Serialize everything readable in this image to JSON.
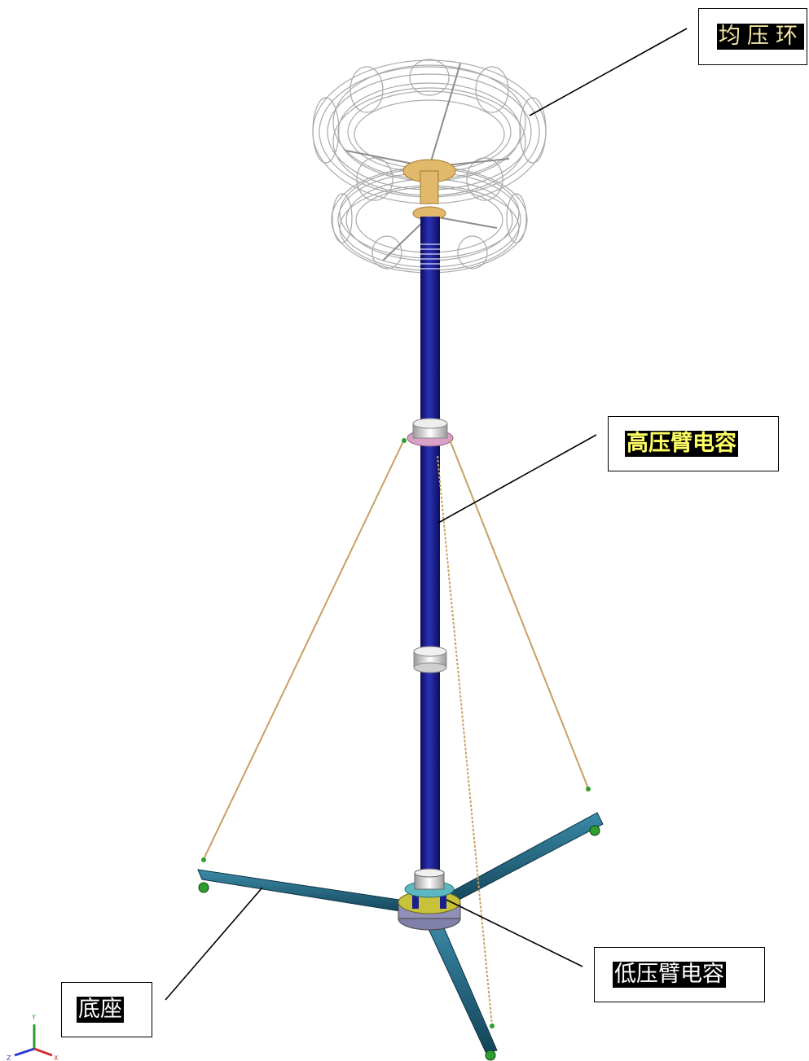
{
  "labels": {
    "grading_ring": "均压环",
    "high_voltage_capacitor": "高压臂电容",
    "low_voltage_capacitor": "低压臂电容",
    "base": "底座"
  },
  "axis_triad": {
    "y": "Y",
    "x": "X",
    "z": "Z"
  },
  "colors": {
    "column": "#1b1f8c",
    "ring_wire": "#a9a9a9",
    "flange": "#e2b86a",
    "guy_rope": "#c8a060",
    "base_beam": "#1d5f7a",
    "hub": "#c8c23a"
  }
}
